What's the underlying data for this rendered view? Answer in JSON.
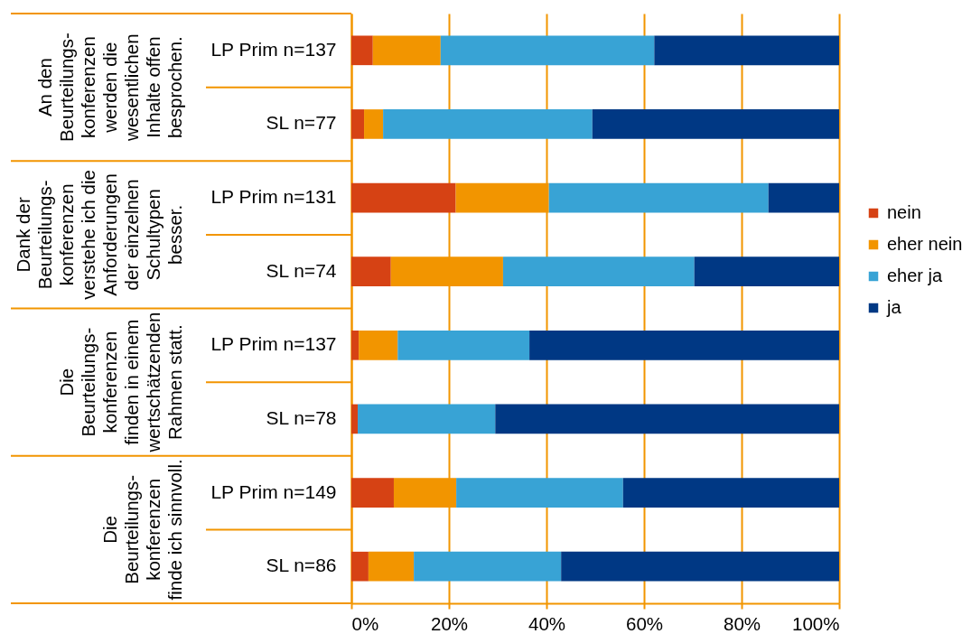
{
  "chart_data": {
    "type": "bar",
    "orientation": "horizontal",
    "stacked": true,
    "categories": [
      "LP Prim n=137",
      "SL n=77",
      "LP Prim n=131",
      "SL n=74",
      "LP Prim n=137",
      "SL n=78",
      "LP Prim n=149",
      "SL n=86"
    ],
    "series": [
      {
        "name": "nein",
        "color": "#d64214",
        "values": [
          4.4,
          2.6,
          21.4,
          8.1,
          1.5,
          1.3,
          8.7,
          3.5
        ]
      },
      {
        "name": "eher nein",
        "color": "#f29500",
        "values": [
          13.9,
          3.9,
          19.1,
          23.0,
          8.0,
          0,
          12.8,
          9.3
        ]
      },
      {
        "name": "eher ja",
        "color": "#38a3d5",
        "values": [
          43.8,
          42.9,
          45.0,
          39.2,
          27.0,
          28.2,
          34.2,
          30.2
        ]
      },
      {
        "name": "ja",
        "color": "#003884",
        "values": [
          37.9,
          50.6,
          14.5,
          29.7,
          63.5,
          70.5,
          44.3,
          57.0
        ]
      }
    ],
    "xlim": [
      0,
      100
    ],
    "xticks": [
      {
        "value": 0,
        "label": "0%"
      },
      {
        "value": 20,
        "label": "20%"
      },
      {
        "value": 40,
        "label": "40%"
      },
      {
        "value": 60,
        "label": "60%"
      },
      {
        "value": 80,
        "label": "80%"
      },
      {
        "value": 100,
        "label": "100%"
      }
    ],
    "grid": "x",
    "legend": "right",
    "annotations": [
      "An den\nBeurteilungs-\nkonferenzen\nwerden die\nwesentlichen\nInhalte offen\nbesprochen.",
      "Dank der\nBeurteilungs-\nkonferenzen\nverstehe ich die\nAnforderungen\nder einzelnen\nSchultypen\nbesser.",
      "Die\nBeurteilungs-\nkonferenzen\nfinden in einem\nwertschätzenden\nRahmen statt.",
      "Die\nBeurteilungs-\nkonferenzen\nfinde ich sinnvoll."
    ]
  }
}
